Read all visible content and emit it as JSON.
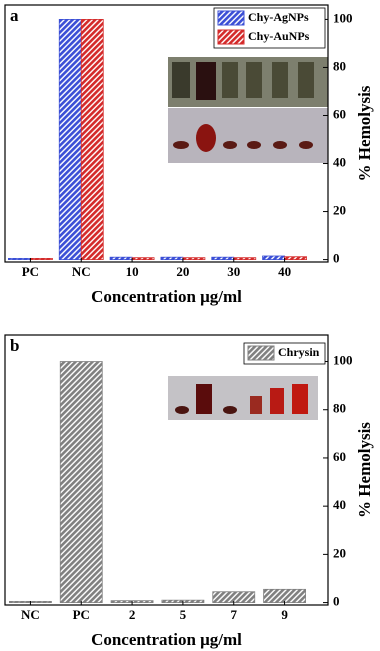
{
  "chart_data": [
    {
      "type": "bar",
      "panel_label": "a",
      "x_label": "Concentration μg/ml",
      "y_label": "% Hemolysis",
      "categories": [
        "PC",
        "NC",
        "10",
        "20",
        "30",
        "40"
      ],
      "series": [
        {
          "name": "Chy-AgNPs",
          "color": "#3b4fd6",
          "values": [
            0.5,
            100,
            1,
            1,
            1,
            1.5
          ]
        },
        {
          "name": "Chy-AuNPs",
          "color": "#d42a2a",
          "values": [
            0.5,
            100,
            0.8,
            0.8,
            0.8,
            1.2
          ]
        }
      ],
      "ylim": [
        -1,
        106
      ],
      "yticks": [
        0,
        20,
        40,
        60,
        80,
        100
      ],
      "legend": "upper right"
    },
    {
      "type": "bar",
      "panel_label": "b",
      "x_label": "Concentration μg/ml",
      "y_label": "% Hemolysis",
      "categories": [
        "NC",
        "PC",
        "2",
        "5",
        "7",
        "9"
      ],
      "series": [
        {
          "name": "Chrysin",
          "color": "#808080",
          "values": [
            0.5,
            100,
            0.8,
            1,
            4.5,
            5.5
          ]
        }
      ],
      "ylim": [
        -1,
        111
      ],
      "yticks": [
        0,
        20,
        40,
        60,
        80,
        100
      ],
      "legend": "upper right"
    }
  ]
}
